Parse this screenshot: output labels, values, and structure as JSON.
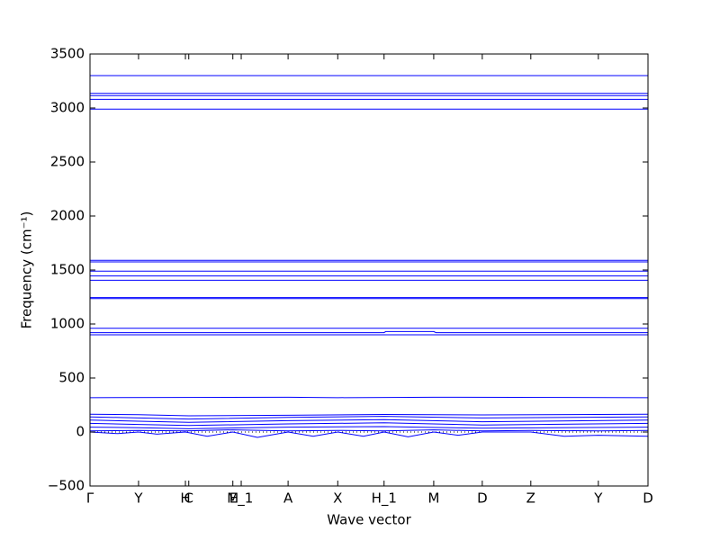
{
  "chart_data": {
    "type": "line",
    "xlabel": "Wave vector",
    "ylabel": "Frequency (cm⁻¹)",
    "xlim": [
      0,
      1
    ],
    "ylim": [
      -500,
      3500
    ],
    "xticks": [
      {
        "value": 0,
        "label": "Γ"
      },
      {
        "value": 0.087,
        "label": "Y"
      },
      {
        "value": 0.171,
        "label": "H"
      },
      {
        "value": 0.177,
        "label": "C"
      },
      {
        "value": 0.256,
        "label": "M"
      },
      {
        "value": 0.271,
        "label": "E_1"
      },
      {
        "value": 0.355,
        "label": "A"
      },
      {
        "value": 0.444,
        "label": "X"
      },
      {
        "value": 0.527,
        "label": "H_1"
      },
      {
        "value": 0.616,
        "label": "M"
      },
      {
        "value": 0.703,
        "label": "D"
      },
      {
        "value": 0.79,
        "label": "Z"
      },
      {
        "value": 0.911,
        "label": "Y"
      },
      {
        "value": 1,
        "label": "D"
      }
    ],
    "yticks": [
      {
        "value": -500,
        "label": "−500"
      },
      0,
      500,
      1000,
      1500,
      2000,
      2500,
      3000,
      3500
    ],
    "color": "#0000ff",
    "series": [
      {
        "x": [
          0,
          1
        ],
        "values": [
          3300,
          3300
        ]
      },
      {
        "x": [
          0,
          1
        ],
        "values": [
          3135,
          3135
        ]
      },
      {
        "x": [
          0,
          1
        ],
        "values": [
          3115,
          3115
        ]
      },
      {
        "x": [
          0,
          1
        ],
        "values": [
          3080,
          3080
        ]
      },
      {
        "x": [
          0,
          1
        ],
        "values": [
          2990,
          2990
        ]
      },
      {
        "x": [
          0,
          1
        ],
        "values": [
          1590,
          1590
        ]
      },
      {
        "x": [
          0,
          1
        ],
        "values": [
          1575,
          1575
        ]
      },
      {
        "x": [
          0,
          1
        ],
        "values": [
          1490,
          1490
        ]
      },
      {
        "x": [
          0,
          1
        ],
        "values": [
          1445,
          1445
        ]
      },
      {
        "x": [
          0,
          1
        ],
        "values": [
          1405,
          1405
        ]
      },
      {
        "x": [
          0,
          1
        ],
        "values": [
          1245,
          1245
        ]
      },
      {
        "x": [
          0,
          1
        ],
        "values": [
          1235,
          1235
        ]
      },
      {
        "x": [
          0,
          1
        ],
        "values": [
          960,
          960
        ]
      },
      {
        "x": [
          0,
          0.527,
          0.53,
          0.616,
          0.62,
          1
        ],
        "values": [
          920,
          920,
          930,
          930,
          920,
          920
        ]
      },
      {
        "x": [
          0,
          1
        ],
        "values": [
          900,
          900
        ]
      },
      {
        "x": [
          0,
          0.355,
          0.444,
          0.616,
          1
        ],
        "values": [
          318,
          322,
          318,
          322,
          318
        ]
      },
      {
        "x": [
          0,
          0.087,
          0.177,
          0.355,
          0.527,
          0.703,
          1
        ],
        "values": [
          165,
          160,
          150,
          155,
          162,
          158,
          165
        ]
      },
      {
        "x": [
          0,
          0.087,
          0.177,
          0.355,
          0.527,
          0.703,
          1
        ],
        "values": [
          140,
          130,
          120,
          135,
          145,
          130,
          140
        ]
      },
      {
        "x": [
          0,
          0.087,
          0.177,
          0.355,
          0.527,
          0.703,
          1
        ],
        "values": [
          110,
          100,
          90,
          105,
          115,
          95,
          110
        ]
      },
      {
        "x": [
          0,
          0.087,
          0.177,
          0.355,
          0.527,
          0.703,
          1
        ],
        "values": [
          80,
          70,
          60,
          75,
          85,
          65,
          80
        ]
      },
      {
        "x": [
          0,
          0.087,
          0.177,
          0.355,
          0.527,
          0.703,
          1
        ],
        "values": [
          45,
          40,
          30,
          45,
          50,
          35,
          45
        ]
      },
      {
        "x": [
          0,
          0.05,
          0.087,
          0.12,
          0.171,
          0.21,
          0.256,
          0.3,
          0.355,
          0.4,
          0.444,
          0.49,
          0.527,
          0.57,
          0.616,
          0.66,
          0.703,
          0.75,
          0.79,
          0.85,
          0.911,
          1
        ],
        "values": [
          0,
          -15,
          0,
          -20,
          0,
          -40,
          0,
          -50,
          0,
          -40,
          0,
          -40,
          0,
          -45,
          0,
          -30,
          0,
          0,
          0,
          -40,
          -30,
          -40
        ]
      },
      {
        "x": [
          0,
          0.087,
          0.171,
          0.256,
          0.355,
          0.444,
          0.527,
          0.616,
          0.703,
          0.79,
          0.911,
          1
        ],
        "values": [
          10,
          15,
          10,
          20,
          10,
          15,
          10,
          20,
          10,
          15,
          10,
          15
        ]
      }
    ]
  }
}
